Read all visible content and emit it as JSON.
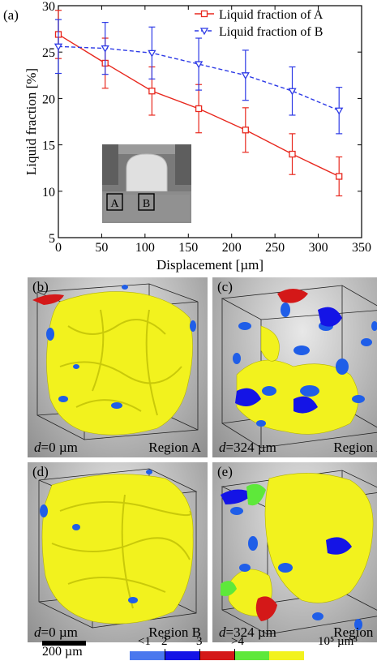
{
  "panel_a_label": "(a)",
  "chart_data": {
    "type": "line",
    "xlabel": "Displacement [µm]",
    "ylabel": "Liquid fraction [%]",
    "xlim": [
      0,
      350
    ],
    "ylim": [
      5,
      30
    ],
    "xticks": [
      0,
      50,
      100,
      150,
      200,
      250,
      300,
      350
    ],
    "yticks": [
      5,
      10,
      15,
      20,
      25,
      30
    ],
    "legend": "top-right",
    "series": [
      {
        "name": "Liquid fraction of A",
        "color": "#e8281e",
        "marker": "square",
        "dash": "solid",
        "x": [
          0,
          54,
          108,
          162,
          216,
          270,
          324
        ],
        "y": [
          26.9,
          23.8,
          20.8,
          18.9,
          16.6,
          14.0,
          11.6
        ],
        "err": [
          2.6,
          2.7,
          2.6,
          2.6,
          2.4,
          2.2,
          2.1
        ]
      },
      {
        "name": "Liquid fraction of B",
        "color": "#2d3ae6",
        "marker": "triangle-down",
        "dash": "dashed",
        "x": [
          0,
          54,
          108,
          162,
          216,
          270,
          324
        ],
        "y": [
          25.6,
          25.4,
          24.9,
          23.7,
          22.5,
          20.8,
          18.7
        ],
        "err": [
          2.9,
          2.8,
          2.8,
          2.8,
          2.7,
          2.6,
          2.5
        ]
      }
    ],
    "inset_labels": [
      "A",
      "B"
    ]
  },
  "panels": [
    {
      "letter": "(b)",
      "d_label": "d",
      "d_value": "=0 µm",
      "region": "Region A"
    },
    {
      "letter": "(c)",
      "d_label": "d",
      "d_value": "=324 µm",
      "region": "Region A"
    },
    {
      "letter": "(d)",
      "d_label": "d",
      "d_value": "=0 µm",
      "region": "Region B"
    },
    {
      "letter": "(e)",
      "d_label": "d",
      "d_value": "=324 µm",
      "region": "Region B"
    }
  ],
  "footer": {
    "scale_label": "200 µm",
    "colorbar_labels": [
      "<1",
      "2",
      "3",
      ">4"
    ],
    "colorbar_unit": "10⁵ µm³",
    "colorbar_colors": [
      "#4a78ee",
      "#1414e6",
      "#d41818",
      "#5ee83a",
      "#f2f21e"
    ]
  }
}
